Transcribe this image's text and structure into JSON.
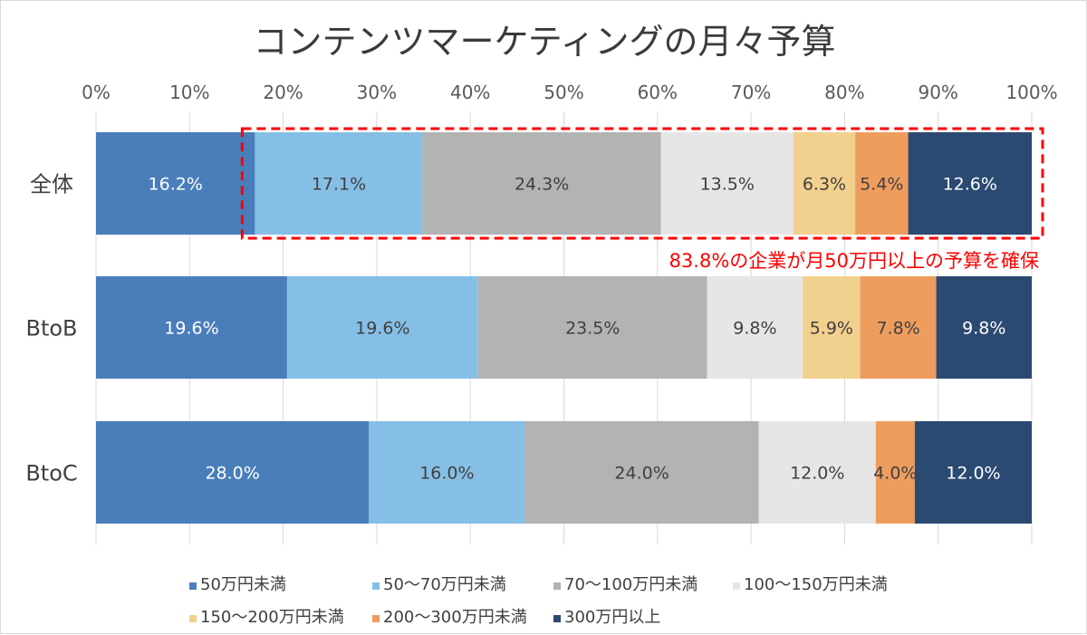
{
  "chart_data": {
    "type": "bar",
    "orientation": "horizontal",
    "stacked": "percent",
    "title": "コンテンツマーケティングの月々予算",
    "categories": [
      "全体",
      "BtoB",
      "BtoC"
    ],
    "x_ticks": [
      "0%",
      "10%",
      "20%",
      "30%",
      "40%",
      "50%",
      "60%",
      "70%",
      "80%",
      "90%",
      "100%"
    ],
    "xlim": [
      0,
      100
    ],
    "grid": true,
    "legend_position": "bottom",
    "series": [
      {
        "name": "50万円未満",
        "color": "#4a7ebb",
        "label_color": "#ffffff",
        "values": [
          16.2,
          19.6,
          28.0
        ],
        "labels": [
          "16.2%",
          "19.6%",
          "28.0%"
        ]
      },
      {
        "name": "50～70万円未満",
        "color": "#86bfe6",
        "label_color": "#404040",
        "values": [
          17.1,
          19.6,
          16.0
        ],
        "labels": [
          "17.1%",
          "19.6%",
          "16.0%"
        ]
      },
      {
        "name": "70～100万円未満",
        "color": "#b3b3b3",
        "label_color": "#404040",
        "values": [
          24.3,
          23.5,
          24.0
        ],
        "labels": [
          "24.3%",
          "23.5%",
          "24.0%"
        ]
      },
      {
        "name": "100～150万円未満",
        "color": "#e6e6e6",
        "label_color": "#404040",
        "values": [
          13.5,
          9.8,
          12.0
        ],
        "labels": [
          "13.5%",
          "9.8%",
          "12.0%"
        ]
      },
      {
        "name": "150～200万円未満",
        "color": "#f2d08e",
        "label_color": "#404040",
        "values": [
          6.3,
          5.9,
          0
        ],
        "labels": [
          "6.3%",
          "5.9%",
          ""
        ]
      },
      {
        "name": "200～300万円未満",
        "color": "#ee9d5e",
        "label_color": "#404040",
        "values": [
          5.4,
          7.8,
          4.0
        ],
        "labels": [
          "5.4%",
          "7.8%",
          "4.0%"
        ]
      },
      {
        "name": "300万円以上",
        "color": "#2b4a72",
        "label_color": "#ffffff",
        "values": [
          12.6,
          9.8,
          12.0
        ],
        "labels": [
          "12.6%",
          "9.8%",
          "12.0%"
        ]
      }
    ],
    "annotation": {
      "text": "83.8%の企業が月50万円以上の予算を確保",
      "color": "#ff0000",
      "category": "全体",
      "x_range": [
        16.2,
        100
      ]
    }
  }
}
